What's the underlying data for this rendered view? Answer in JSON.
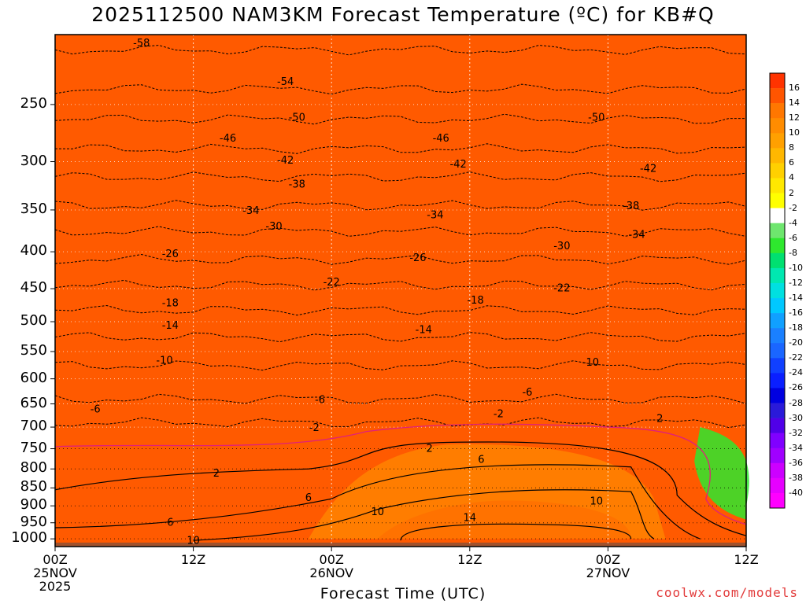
{
  "chart_data": {
    "type": "heatmap",
    "title": "2025112500 NAM3KM Forecast Temperature (ºC) for KB#Q",
    "xlabel": "Forecast Time (UTC)",
    "ylabel": "",
    "credit": "coolwx.com/models",
    "x_ticks": [
      {
        "hour": 0,
        "line1": "00Z",
        "line2": "25NOV",
        "line3": "2025"
      },
      {
        "hour": 12,
        "line1": "12Z",
        "line2": "",
        "line3": ""
      },
      {
        "hour": 24,
        "line1": "00Z",
        "line2": "26NOV",
        "line3": ""
      },
      {
        "hour": 36,
        "line1": "12Z",
        "line2": "",
        "line3": ""
      },
      {
        "hour": 48,
        "line1": "00Z",
        "line2": "27NOV",
        "line3": ""
      },
      {
        "hour": 60,
        "line1": "12Z",
        "line2": "",
        "line3": ""
      }
    ],
    "xlim": [
      0,
      60
    ],
    "y_ticks": [
      "250",
      "300",
      "350",
      "400",
      "450",
      "500",
      "550",
      "600",
      "650",
      "700",
      "750",
      "800",
      "850",
      "900",
      "950",
      "1000"
    ],
    "ylim_hpa": [
      200,
      1025
    ],
    "colorbar_ticks": [
      "16",
      "14",
      "12",
      "10",
      "8",
      "6",
      "4",
      "2",
      "-2",
      "-4",
      "-6",
      "-8",
      "-10",
      "-12",
      "-14",
      "-16",
      "-18",
      "-20",
      "-22",
      "-24",
      "-26",
      "-28",
      "-30",
      "-32",
      "-34",
      "-36",
      "-38",
      "-40"
    ],
    "contour_labels": [
      "-58",
      "-54",
      "-50",
      "-50",
      "-46",
      "-46",
      "-42",
      "-42",
      "-42",
      "-38",
      "-38",
      "-34",
      "-34",
      "-34",
      "-30",
      "-30",
      "-26",
      "-26",
      "-22",
      "-22",
      "-18",
      "-18",
      "-14",
      "-14",
      "-10",
      "-10",
      "-6",
      "-6",
      "-6",
      "-2",
      "-2",
      "2",
      "2",
      "2",
      "6",
      "6",
      "6",
      "10",
      "10",
      "10",
      "14"
    ],
    "temperature_profile": [
      {
        "hour": 0,
        "t1000": 8,
        "t850": 2,
        "t700": -4,
        "t500": -15,
        "t300": -44
      },
      {
        "hour": 12,
        "t1000": 9,
        "t850": 3,
        "t700": -3,
        "t500": -14,
        "t300": -43
      },
      {
        "hour": 24,
        "t1000": 11,
        "t850": 5,
        "t700": -2,
        "t500": -15,
        "t300": -44
      },
      {
        "hour": 36,
        "t1000": 14,
        "t850": 8,
        "t700": 1,
        "t500": -16,
        "t300": -44
      },
      {
        "hour": 48,
        "t1000": 13,
        "t850": 8,
        "t700": 0,
        "t500": -15,
        "t300": -43
      },
      {
        "hour": 60,
        "t1000": 6,
        "t850": -4,
        "t700": -6,
        "t500": -17,
        "t300": -42
      }
    ]
  }
}
